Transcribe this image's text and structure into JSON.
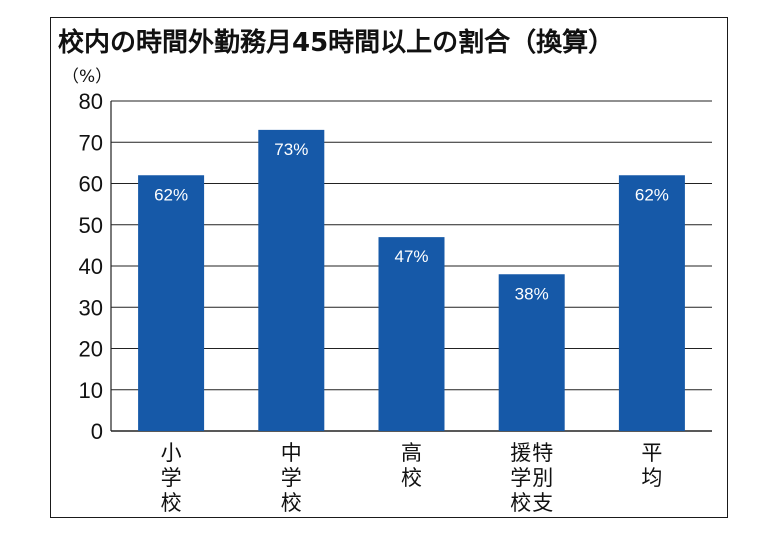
{
  "chart_data": {
    "type": "bar",
    "title": "校内の時間外勤務月45時間以上の割合（換算）",
    "ylabel": "（%）",
    "ylim": [
      0,
      80
    ],
    "yticks": [
      0,
      10,
      20,
      30,
      40,
      50,
      60,
      70,
      80
    ],
    "grid": true,
    "categories": [
      "小学校",
      "中学校",
      "高校",
      "特別支援学校",
      "平均"
    ],
    "category_columns": [
      [
        "小学校"
      ],
      [
        "中学校"
      ],
      [
        "高校"
      ],
      [
        "特別支",
        "援学校"
      ],
      [
        "平均"
      ]
    ],
    "values": [
      62,
      73,
      47,
      38,
      62
    ],
    "data_labels": [
      "62%",
      "73%",
      "47%",
      "38%",
      "62%"
    ],
    "bar_color": "#1659a8"
  }
}
